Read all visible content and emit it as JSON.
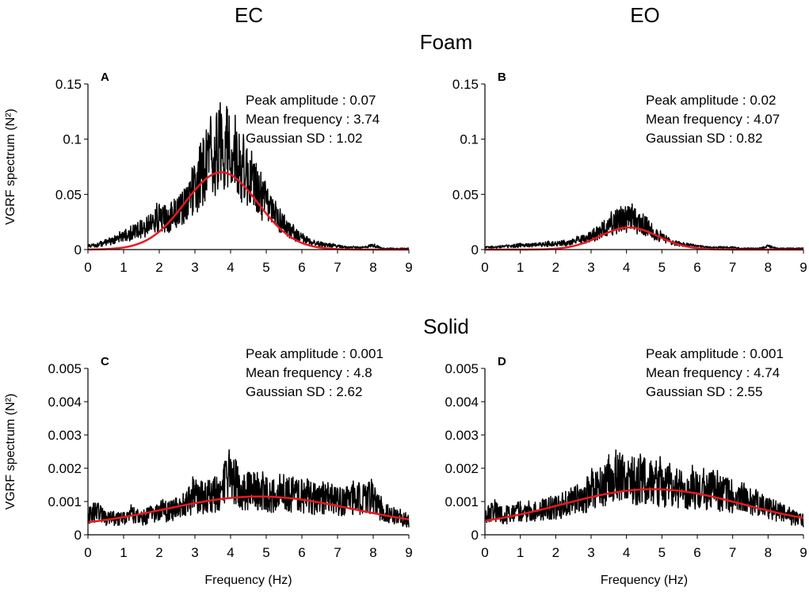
{
  "figure": {
    "column_titles": [
      "EC",
      "EO"
    ],
    "row_titles": [
      "Foam",
      "Solid"
    ]
  },
  "colors": {
    "signal": "#000000",
    "fit": "#e8191f",
    "axis": "#000000"
  },
  "chart_data": [
    {
      "type": "line",
      "panel_label": "A",
      "column": "EC",
      "row": "Foam",
      "xlabel": "",
      "ylabel": "VGRF spectrum (N²)",
      "xlim": [
        0,
        9
      ],
      "ylim": [
        0,
        0.15
      ],
      "xticks": [
        "0",
        "1",
        "2",
        "3",
        "4",
        "5",
        "6",
        "7",
        "8",
        "9"
      ],
      "yticks": [
        "0",
        "0.05",
        "0.1",
        "0.15"
      ],
      "stats": [
        "Peak amplitude : 0.07",
        "Mean frequency : 3.74",
        "Gaussian SD : 1.02"
      ],
      "gaussian_fit": {
        "peak": 0.07,
        "mean": 3.74,
        "sd": 1.02,
        "baseline": 0.0
      },
      "series": [
        {
          "name": "VGRF spectrum",
          "color": "#000000",
          "x": [
            0,
            0.25,
            0.5,
            0.75,
            1,
            1.25,
            1.5,
            1.75,
            2,
            2.25,
            2.5,
            2.75,
            3,
            3.25,
            3.5,
            3.75,
            4,
            4.25,
            4.5,
            4.75,
            5,
            5.25,
            5.5,
            5.75,
            6,
            6.25,
            6.5,
            6.75,
            7,
            7.25,
            7.5,
            7.75,
            8,
            8.25,
            8.5,
            8.75,
            9
          ],
          "y": [
            0.003,
            0.004,
            0.006,
            0.009,
            0.012,
            0.015,
            0.019,
            0.023,
            0.029,
            0.027,
            0.034,
            0.043,
            0.055,
            0.073,
            0.085,
            0.098,
            0.093,
            0.078,
            0.066,
            0.054,
            0.04,
            0.031,
            0.023,
            0.015,
            0.01,
            0.007,
            0.005,
            0.004,
            0.003,
            0.002,
            0.002,
            0.002,
            0.004,
            0.001,
            0.001,
            0.001,
            0.001
          ]
        },
        {
          "name": "Gaussian fit",
          "color": "#e8191f"
        }
      ]
    },
    {
      "type": "line",
      "panel_label": "B",
      "column": "EO",
      "row": "Foam",
      "xlabel": "",
      "ylabel": "",
      "xlim": [
        0,
        9
      ],
      "ylim": [
        0,
        0.15
      ],
      "xticks": [
        "0",
        "1",
        "2",
        "3",
        "4",
        "5",
        "6",
        "7",
        "8",
        "9"
      ],
      "yticks": [
        "0",
        "0.05",
        "0.1",
        "0.15"
      ],
      "stats": [
        "Peak amplitude : 0.02",
        "Mean frequency : 4.07",
        "Gaussian SD : 0.82"
      ],
      "gaussian_fit": {
        "peak": 0.02,
        "mean": 4.07,
        "sd": 0.82,
        "baseline": 0.0
      },
      "series": [
        {
          "name": "VGRF spectrum",
          "color": "#000000",
          "x": [
            0,
            0.25,
            0.5,
            0.75,
            1,
            1.25,
            1.5,
            1.75,
            2,
            2.25,
            2.5,
            2.75,
            3,
            3.25,
            3.5,
            3.75,
            4,
            4.25,
            4.5,
            4.75,
            5,
            5.25,
            5.5,
            5.75,
            6,
            6.25,
            6.5,
            6.75,
            7,
            7.25,
            7.5,
            7.75,
            8,
            8.25,
            8.5,
            8.75,
            9
          ],
          "y": [
            0.002,
            0.002,
            0.003,
            0.003,
            0.004,
            0.004,
            0.004,
            0.005,
            0.005,
            0.006,
            0.007,
            0.009,
            0.012,
            0.016,
            0.021,
            0.026,
            0.028,
            0.026,
            0.022,
            0.016,
            0.011,
            0.007,
            0.005,
            0.004,
            0.003,
            0.002,
            0.002,
            0.002,
            0.002,
            0.001,
            0.001,
            0.001,
            0.003,
            0.001,
            0.001,
            0.001,
            0.001
          ]
        },
        {
          "name": "Gaussian fit",
          "color": "#e8191f"
        }
      ]
    },
    {
      "type": "line",
      "panel_label": "C",
      "column": "EC",
      "row": "Solid",
      "xlabel": "Frequency (Hz)",
      "ylabel": "VGRF spectrum (N²)",
      "xlim": [
        0,
        9
      ],
      "ylim": [
        0,
        0.005
      ],
      "xticks": [
        "0",
        "1",
        "2",
        "3",
        "4",
        "5",
        "6",
        "7",
        "8",
        "9"
      ],
      "yticks": [
        "0",
        "0.001",
        "0.002",
        "0.003",
        "0.004",
        "0.005"
      ],
      "stats": [
        "Peak amplitude : 0.001",
        "Mean frequency : 4.8",
        "Gaussian SD : 2.62"
      ],
      "gaussian_fit": {
        "peak": 0.00095,
        "mean": 4.8,
        "sd": 2.62,
        "baseline": 0.0002
      },
      "series": [
        {
          "name": "VGRF spectrum",
          "color": "#000000",
          "x": [
            0,
            0.25,
            0.5,
            0.75,
            1,
            1.25,
            1.5,
            1.75,
            2,
            2.25,
            2.5,
            2.75,
            3,
            3.25,
            3.5,
            3.75,
            4,
            4.25,
            4.5,
            4.75,
            5,
            5.25,
            5.5,
            5.75,
            6,
            6.25,
            6.5,
            6.75,
            7,
            7.25,
            7.5,
            7.75,
            8,
            8.25,
            8.5,
            8.75,
            9
          ],
          "y": [
            0.0006,
            0.0007,
            0.0005,
            0.0005,
            0.0005,
            0.0006,
            0.0005,
            0.0006,
            0.0007,
            0.0007,
            0.0008,
            0.0009,
            0.0012,
            0.0011,
            0.0012,
            0.0013,
            0.0019,
            0.0013,
            0.0013,
            0.0013,
            0.0012,
            0.0012,
            0.0012,
            0.0012,
            0.0012,
            0.0011,
            0.0011,
            0.0011,
            0.001,
            0.001,
            0.0011,
            0.0011,
            0.0011,
            0.0007,
            0.0006,
            0.0005,
            0.0004
          ]
        },
        {
          "name": "Gaussian fit",
          "color": "#e8191f"
        }
      ]
    },
    {
      "type": "line",
      "panel_label": "D",
      "column": "EO",
      "row": "Solid",
      "xlabel": "Frequency (Hz)",
      "ylabel": "",
      "xlim": [
        0,
        9
      ],
      "ylim": [
        0,
        0.005
      ],
      "xticks": [
        "0",
        "1",
        "2",
        "3",
        "4",
        "5",
        "6",
        "7",
        "8",
        "9"
      ],
      "yticks": [
        "0",
        "0.001",
        "0.002",
        "0.003",
        "0.004",
        "0.005"
      ],
      "stats": [
        "Peak amplitude : 0.001",
        "Mean frequency : 4.74",
        "Gaussian SD : 2.55"
      ],
      "gaussian_fit": {
        "peak": 0.00115,
        "mean": 4.74,
        "sd": 2.55,
        "baseline": 0.00022
      },
      "series": [
        {
          "name": "VGRF spectrum",
          "color": "#000000",
          "x": [
            0,
            0.25,
            0.5,
            0.75,
            1,
            1.25,
            1.5,
            1.75,
            2,
            2.25,
            2.5,
            2.75,
            3,
            3.25,
            3.5,
            3.75,
            4,
            4.25,
            4.5,
            4.75,
            5,
            5.25,
            5.5,
            5.75,
            6,
            6.25,
            6.5,
            6.75,
            7,
            7.25,
            7.5,
            7.75,
            8,
            8.25,
            8.5,
            8.75,
            9
          ],
          "y": [
            0.0006,
            0.0007,
            0.0006,
            0.0006,
            0.0007,
            0.0007,
            0.0007,
            0.0008,
            0.0008,
            0.0009,
            0.001,
            0.0011,
            0.0013,
            0.0014,
            0.0016,
            0.0017,
            0.0017,
            0.0016,
            0.0016,
            0.0016,
            0.0015,
            0.0015,
            0.0014,
            0.0014,
            0.0013,
            0.0013,
            0.0013,
            0.0012,
            0.0011,
            0.0011,
            0.001,
            0.0009,
            0.0008,
            0.0007,
            0.0006,
            0.0005,
            0.0004
          ]
        },
        {
          "name": "Gaussian fit",
          "color": "#e8191f"
        }
      ]
    }
  ]
}
